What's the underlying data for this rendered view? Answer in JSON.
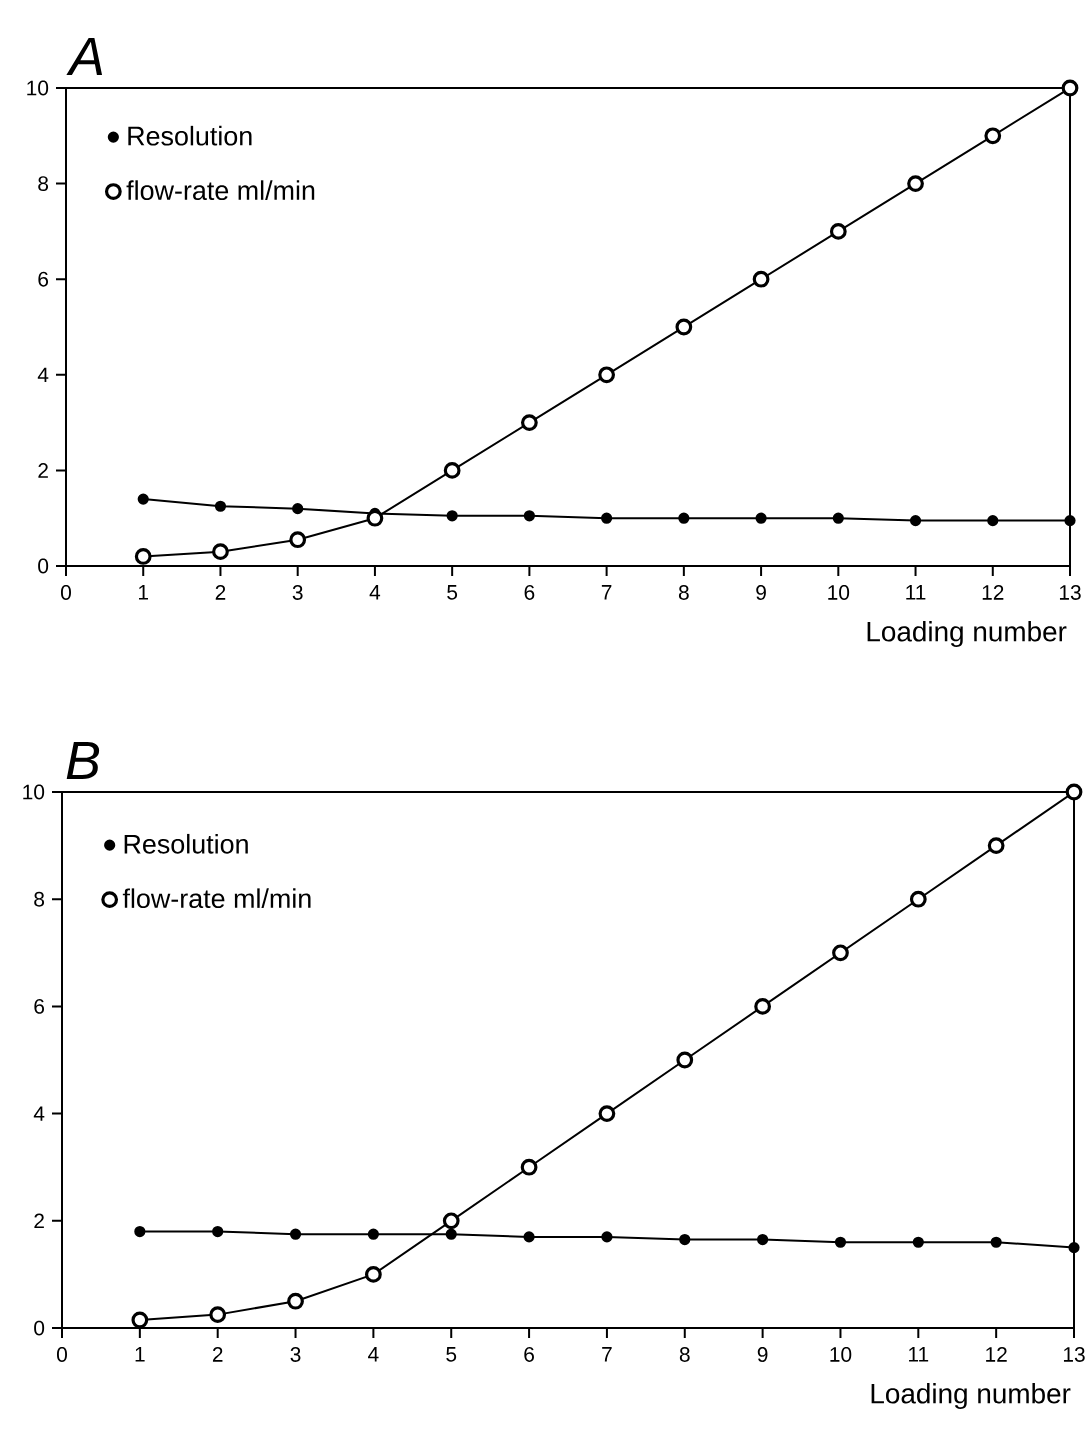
{
  "chart_data": [
    {
      "type": "line",
      "title": "A",
      "xlabel": "Loading number",
      "x": [
        1,
        2,
        3,
        4,
        5,
        6,
        7,
        8,
        9,
        10,
        11,
        12,
        13
      ],
      "xlim": [
        0,
        13
      ],
      "xticks": [
        0,
        1,
        2,
        3,
        4,
        5,
        6,
        7,
        8,
        9,
        10,
        11,
        12,
        13
      ],
      "ylim": [
        0,
        10
      ],
      "yticks": [
        0,
        2,
        4,
        6,
        8,
        10
      ],
      "legend": "top left",
      "grid": false,
      "line_style": "solid",
      "series": [
        {
          "name": "Resolution",
          "color": "#000000",
          "marker": "circle",
          "values": [
            1.4,
            1.25,
            1.2,
            1.1,
            1.05,
            1.05,
            1.0,
            1.0,
            1.0,
            1.0,
            0.95,
            0.95,
            0.95
          ]
        },
        {
          "name": "flow-rate ml/min",
          "color": "#000000",
          "marker": "circle",
          "values": [
            0.2,
            0.3,
            0.55,
            1.0,
            2,
            3,
            4,
            5,
            6,
            7,
            8,
            9,
            10
          ]
        }
      ]
    },
    {
      "type": "line",
      "title": "B",
      "xlabel": "Loading number",
      "x": [
        1,
        2,
        3,
        4,
        5,
        6,
        7,
        8,
        9,
        10,
        11,
        12,
        13
      ],
      "xlim": [
        0,
        13
      ],
      "xticks": [
        0,
        1,
        2,
        3,
        4,
        5,
        6,
        7,
        8,
        9,
        10,
        11,
        12,
        13
      ],
      "ylim": [
        0,
        10
      ],
      "yticks": [
        0,
        2,
        4,
        6,
        8,
        10
      ],
      "legend": "top left",
      "grid": false,
      "line_style": "solid",
      "series": [
        {
          "name": "Resolution",
          "color": "#000000",
          "marker": "circle",
          "values": [
            1.8,
            1.8,
            1.75,
            1.75,
            1.75,
            1.7,
            1.7,
            1.65,
            1.65,
            1.6,
            1.6,
            1.6,
            1.5
          ]
        },
        {
          "name": "flow-rate ml/min",
          "color": "#000000",
          "marker": "circle",
          "values": [
            0.15,
            0.25,
            0.5,
            1.0,
            2,
            3,
            4,
            5,
            6,
            7,
            8,
            9,
            10
          ]
        }
      ]
    }
  ]
}
